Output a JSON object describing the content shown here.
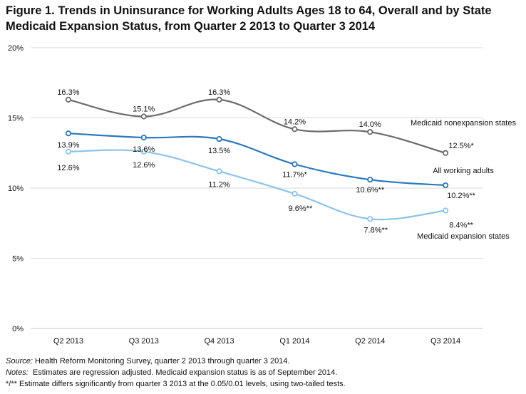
{
  "chart_data": {
    "type": "line",
    "title": "Figure 1. Trends in Uninsurance for Working Adults Ages 18 to 64, Overall and by State Medicaid Expansion Status, from Quarter 2 2013 to Quarter 3 2014",
    "xlabel": "",
    "ylabel": "",
    "ylim": [
      0,
      20
    ],
    "yticks": [
      0,
      5,
      10,
      15,
      20
    ],
    "ytick_labels": [
      "0%",
      "5%",
      "10%",
      "15%",
      "20%"
    ],
    "grid": "horizontal",
    "categories": [
      "Q2 2013",
      "Q3 2013",
      "Q4 2013",
      "Q1 2014",
      "Q2 2014",
      "Q3 2014"
    ],
    "series": [
      {
        "name": "Medicaid nonexpansion states",
        "color": "#6b6b6b",
        "values": [
          16.3,
          15.1,
          16.3,
          14.2,
          14.0,
          12.5
        ],
        "labels": [
          "16.3%",
          "15.1%",
          "16.3%",
          "14.2%",
          "14.0%",
          "12.5%*"
        ]
      },
      {
        "name": "All working adults",
        "color": "#2a78bd",
        "values": [
          13.9,
          13.6,
          13.5,
          11.7,
          10.6,
          10.2
        ],
        "labels": [
          "13.9%",
          "13.6%",
          "13.5%",
          "11.7%*",
          "10.6%**",
          "10.2%**"
        ]
      },
      {
        "name": "Medicaid expansion states",
        "color": "#8cc3ea",
        "values": [
          12.6,
          12.6,
          11.2,
          9.6,
          7.8,
          8.4
        ],
        "labels": [
          "12.6%",
          "12.6%",
          "11.2%",
          "9.6%**",
          "7.8%**",
          "8.4%**"
        ]
      }
    ]
  },
  "notes": {
    "source_label": "Source:",
    "source_text": " Health Reform Monitoring Survey, quarter 2 2013 through quarter 3 2014.",
    "notes_label": "Notes:",
    "notes_text": "  Estimates are regression adjusted. Medicaid expansion status is as of September 2014.",
    "significance": "*/** Estimate differs significantly from quarter 3 2013 at the 0.05/0.01 levels, using two-tailed tests."
  }
}
